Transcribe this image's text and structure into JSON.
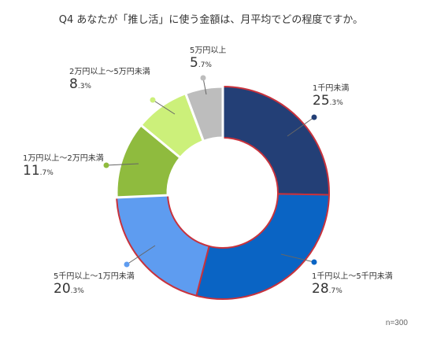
{
  "title": "Q4 あなたが「推し活」に使う金額は、月平均でどの程度ですか。",
  "note": "n=300",
  "chart_data": {
    "type": "pie",
    "donut": true,
    "total": 300,
    "slices": [
      {
        "label": "1千円未満",
        "value": 25.3,
        "int": "25",
        "dec": ".3%",
        "color": "#233f76",
        "highlight": true
      },
      {
        "label": "1千円以上～5千円未満",
        "value": 28.7,
        "int": "28",
        "dec": ".7%",
        "color": "#0a64c4",
        "highlight": true
      },
      {
        "label": "5千円以上～1万円未満",
        "value": 20.3,
        "int": "20",
        "dec": ".3%",
        "color": "#5e9cf0",
        "highlight": true
      },
      {
        "label": "1万円以上～2万円未満",
        "value": 11.7,
        "int": "11",
        "dec": ".7%",
        "color": "#8fbb3e",
        "highlight": false
      },
      {
        "label": "2万円以上～5万円未満",
        "value": 8.3,
        "int": "8",
        "dec": ".3%",
        "color": "#ccf07a",
        "highlight": false
      },
      {
        "label": "5万円以上",
        "value": 5.7,
        "int": "5",
        "dec": ".7%",
        "color": "#bdbdbd",
        "highlight": false
      }
    ]
  }
}
